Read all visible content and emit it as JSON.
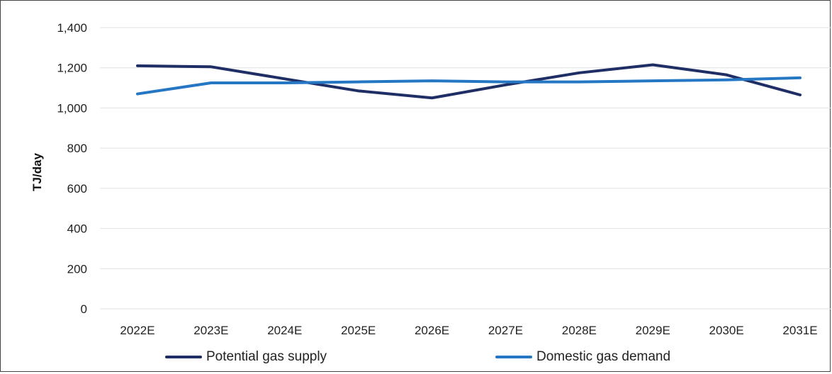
{
  "chart_data": {
    "type": "line",
    "categories": [
      "2022E",
      "2023E",
      "2024E",
      "2025E",
      "2026E",
      "2027E",
      "2028E",
      "2029E",
      "2030E",
      "2031E"
    ],
    "series": [
      {
        "name": "Potential gas supply",
        "color": "#1f2f66",
        "values": [
          1210,
          1205,
          1145,
          1085,
          1050,
          1115,
          1175,
          1215,
          1165,
          1065
        ]
      },
      {
        "name": "Domestic gas demand",
        "color": "#2577c4",
        "values": [
          1070,
          1125,
          1125,
          1130,
          1135,
          1130,
          1130,
          1135,
          1140,
          1150
        ]
      }
    ],
    "ylabel": "TJ/day",
    "xlabel": "",
    "ylim": [
      0,
      1400
    ],
    "yticks": [
      "0",
      "200",
      "400",
      "600",
      "800",
      "1,000",
      "1,200",
      "1,400"
    ],
    "ytick_values": [
      0,
      200,
      400,
      600,
      800,
      1000,
      1200,
      1400
    ],
    "grid": true,
    "legend_position": "bottom"
  }
}
